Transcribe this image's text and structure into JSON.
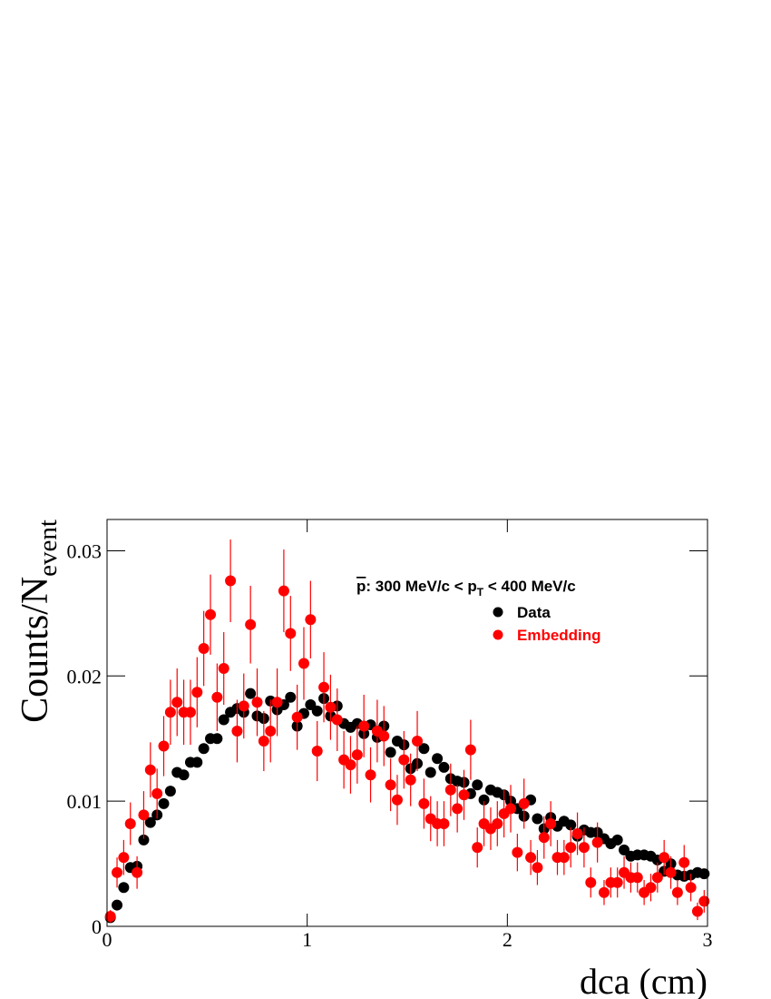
{
  "chart_data": {
    "type": "scatter",
    "ylabel": [
      "Counts/N",
      "event"
    ],
    "xlabel": "dca (cm)",
    "legend_title": [
      "p",
      ": 300 MeV/c < p",
      "T",
      " < 400 MeV/c"
    ],
    "legend": "upper right",
    "xlim": [
      0,
      3
    ],
    "xticks": [
      0,
      1,
      2,
      3
    ],
    "ylim": [
      0,
      0.0325
    ],
    "yticks": [
      0,
      0.01,
      0.02,
      0.03
    ],
    "x": [
      0.0167,
      0.05,
      0.0833,
      0.1167,
      0.15,
      0.1833,
      0.2167,
      0.25,
      0.2833,
      0.3167,
      0.35,
      0.3833,
      0.4167,
      0.45,
      0.4833,
      0.5167,
      0.55,
      0.5833,
      0.6167,
      0.65,
      0.6833,
      0.7167,
      0.75,
      0.7833,
      0.8167,
      0.85,
      0.8833,
      0.9167,
      0.95,
      0.9833,
      1.0167,
      1.05,
      1.0833,
      1.1167,
      1.15,
      1.1833,
      1.2167,
      1.25,
      1.2833,
      1.3167,
      1.35,
      1.3833,
      1.4167,
      1.45,
      1.4833,
      1.5167,
      1.55,
      1.5833,
      1.6167,
      1.65,
      1.6833,
      1.7167,
      1.75,
      1.7833,
      1.8167,
      1.85,
      1.8833,
      1.9167,
      1.95,
      1.9833,
      2.0167,
      2.05,
      2.0833,
      2.1167,
      2.15,
      2.1833,
      2.2167,
      2.25,
      2.2833,
      2.3167,
      2.35,
      2.3833,
      2.4167,
      2.45,
      2.4833,
      2.5167,
      2.55,
      2.5833,
      2.6167,
      2.65,
      2.6833,
      2.7167,
      2.75,
      2.7833,
      2.8167,
      2.85,
      2.8833,
      2.9167,
      2.95,
      2.9833
    ],
    "series": [
      {
        "name": "Data",
        "color": "#000000",
        "values": [
          0.0007,
          0.0017,
          0.0031,
          0.0047,
          0.0048,
          0.0069,
          0.0083,
          0.0089,
          0.0098,
          0.0108,
          0.0123,
          0.0121,
          0.0131,
          0.0131,
          0.0142,
          0.015,
          0.015,
          0.0165,
          0.0171,
          0.0174,
          0.0171,
          0.0186,
          0.0168,
          0.0166,
          0.018,
          0.0173,
          0.0177,
          0.0183,
          0.016,
          0.017,
          0.0177,
          0.0172,
          0.0182,
          0.0168,
          0.0176,
          0.0162,
          0.0159,
          0.0162,
          0.0154,
          0.0161,
          0.0151,
          0.016,
          0.0139,
          0.0148,
          0.0145,
          0.0126,
          0.013,
          0.0142,
          0.0123,
          0.0134,
          0.0127,
          0.0118,
          0.0116,
          0.0115,
          0.0106,
          0.0113,
          0.0101,
          0.0109,
          0.0107,
          0.0105,
          0.01,
          0.0094,
          0.0088,
          0.0101,
          0.0086,
          0.0078,
          0.0087,
          0.008,
          0.0084,
          0.0081,
          0.0072,
          0.0077,
          0.0075,
          0.0075,
          0.007,
          0.0066,
          0.0069,
          0.0061,
          0.0056,
          0.0057,
          0.0057,
          0.0056,
          0.0053,
          0.0044,
          0.005,
          0.0041,
          0.004,
          0.0041,
          0.0043,
          0.0042
        ]
      },
      {
        "name": "Embedding",
        "color": "#ff0000",
        "values": [
          0.0008,
          0.0043,
          0.0055,
          0.0082,
          0.0043,
          0.0089,
          0.0125,
          0.0106,
          0.0144,
          0.0171,
          0.0179,
          0.0171,
          0.0171,
          0.0187,
          0.0222,
          0.0249,
          0.0183,
          0.0206,
          0.0276,
          0.0156,
          0.0176,
          0.0241,
          0.0179,
          0.0148,
          0.0156,
          0.0179,
          0.0268,
          0.0234,
          0.0167,
          0.021,
          0.0245,
          0.014,
          0.0191,
          0.0175,
          0.0165,
          0.0133,
          0.0129,
          0.0137,
          0.016,
          0.0121,
          0.0156,
          0.0152,
          0.0113,
          0.0101,
          0.0133,
          0.0117,
          0.0148,
          0.0098,
          0.0086,
          0.0082,
          0.0082,
          0.0109,
          0.0094,
          0.0105,
          0.0141,
          0.0063,
          0.0082,
          0.0078,
          0.0082,
          0.009,
          0.0094,
          0.0059,
          0.0098,
          0.0055,
          0.0047,
          0.0071,
          0.0082,
          0.0055,
          0.0055,
          0.0063,
          0.0074,
          0.0063,
          0.0035,
          0.0067,
          0.0027,
          0.0035,
          0.0035,
          0.0043,
          0.0039,
          0.0039,
          0.0027,
          0.0031,
          0.0039,
          0.0055,
          0.0043,
          0.0027,
          0.0051,
          0.0031,
          0.0012,
          0.002
        ],
        "errors": [
          0.0005,
          0.0012,
          0.0014,
          0.0017,
          0.0013,
          0.0019,
          0.0022,
          0.002,
          0.0024,
          0.0026,
          0.0027,
          0.0026,
          0.0026,
          0.0028,
          0.003,
          0.0032,
          0.0027,
          0.0029,
          0.0033,
          0.0025,
          0.0026,
          0.0031,
          0.0027,
          0.0024,
          0.0025,
          0.0027,
          0.0033,
          0.003,
          0.0026,
          0.0029,
          0.0031,
          0.0024,
          0.0028,
          0.0026,
          0.0025,
          0.0023,
          0.0023,
          0.0023,
          0.0025,
          0.0022,
          0.0025,
          0.0024,
          0.0021,
          0.002,
          0.0023,
          0.0021,
          0.0024,
          0.002,
          0.0018,
          0.0018,
          0.0018,
          0.0021,
          0.0019,
          0.002,
          0.0024,
          0.0016,
          0.0018,
          0.0017,
          0.0018,
          0.0019,
          0.0019,
          0.0015,
          0.002,
          0.0014,
          0.0014,
          0.0017,
          0.0018,
          0.0014,
          0.0014,
          0.0016,
          0.0017,
          0.0016,
          0.0012,
          0.0016,
          0.001,
          0.0012,
          0.0012,
          0.0013,
          0.0012,
          0.0012,
          0.001,
          0.0011,
          0.0012,
          0.0014,
          0.0013,
          0.001,
          0.0014,
          0.0011,
          0.0007,
          0.0009
        ]
      }
    ]
  }
}
